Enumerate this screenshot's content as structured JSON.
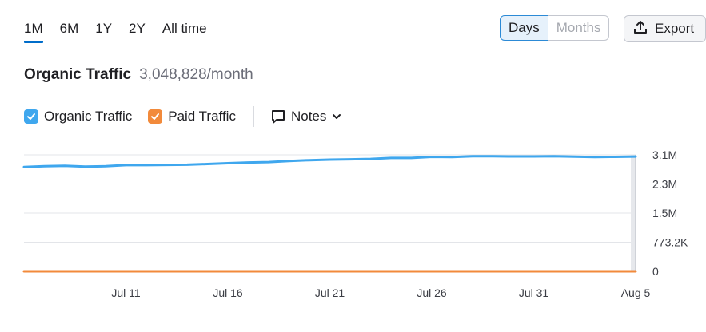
{
  "range_tabs": [
    {
      "label": "1M",
      "active": true
    },
    {
      "label": "6M",
      "active": false
    },
    {
      "label": "1Y",
      "active": false
    },
    {
      "label": "2Y",
      "active": false
    },
    {
      "label": "All time",
      "active": false
    }
  ],
  "view_toggle": {
    "days": "Days",
    "months": "Months",
    "selected": "Days"
  },
  "export_label": "Export",
  "header": {
    "title": "Organic Traffic",
    "value": "3,048,828/month"
  },
  "legend": {
    "organic": {
      "label": "Organic Traffic",
      "checked": true,
      "color": "#3fa7ee"
    },
    "paid": {
      "label": "Paid Traffic",
      "checked": true,
      "color": "#f28a3b"
    },
    "notes": "Notes"
  },
  "chart_data": {
    "type": "line",
    "x": [
      "Jul 6",
      "Jul 7",
      "Jul 8",
      "Jul 9",
      "Jul 10",
      "Jul 11",
      "Jul 12",
      "Jul 13",
      "Jul 14",
      "Jul 15",
      "Jul 16",
      "Jul 17",
      "Jul 18",
      "Jul 19",
      "Jul 20",
      "Jul 21",
      "Jul 22",
      "Jul 23",
      "Jul 24",
      "Jul 25",
      "Jul 26",
      "Jul 27",
      "Jul 28",
      "Jul 29",
      "Jul 30",
      "Jul 31",
      "Aug 1",
      "Aug 2",
      "Aug 3",
      "Aug 4",
      "Aug 5"
    ],
    "x_tick_labels": [
      "Jul 11",
      "Jul 16",
      "Jul 21",
      "Jul 26",
      "Jul 31",
      "Aug 5"
    ],
    "y_tick_labels": [
      "3.1M",
      "2.3M",
      "1.5M",
      "773.2K",
      "0"
    ],
    "ylim": [
      0,
      3092800
    ],
    "grid": true,
    "series": [
      {
        "name": "Organic Traffic",
        "color": "#3fa7ee",
        "values": [
          2770000,
          2790000,
          2800000,
          2780000,
          2790000,
          2820000,
          2820000,
          2825000,
          2830000,
          2850000,
          2870000,
          2890000,
          2900000,
          2930000,
          2950000,
          2965000,
          2975000,
          2985000,
          3010000,
          3010000,
          3040000,
          3035000,
          3055000,
          3055000,
          3050000,
          3050000,
          3055000,
          3045000,
          3035000,
          3040000,
          3048828
        ]
      },
      {
        "name": "Paid Traffic",
        "color": "#f28a3b",
        "values": [
          0,
          0,
          0,
          0,
          0,
          0,
          0,
          0,
          0,
          0,
          0,
          0,
          0,
          0,
          0,
          0,
          0,
          0,
          0,
          0,
          0,
          0,
          0,
          0,
          0,
          0,
          0,
          0,
          0,
          0,
          0
        ]
      }
    ]
  }
}
